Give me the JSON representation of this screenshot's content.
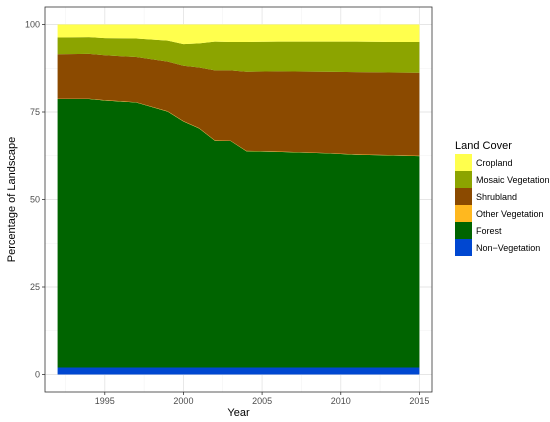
{
  "chart_data": {
    "type": "area",
    "stacked": true,
    "xlabel": "Year",
    "ylabel": "Percentage of Landscape",
    "xlim": [
      1991.2,
      2015.8
    ],
    "ylim": [
      -5,
      105
    ],
    "xticks": [
      1995,
      2000,
      2005,
      2010,
      2015
    ],
    "yticks": [
      0,
      25,
      50,
      75,
      100
    ],
    "grid": true,
    "legend_position": "right",
    "legend_title": "Land Cover",
    "x": [
      1992,
      1994,
      1995,
      1997,
      1999,
      2000,
      2001,
      2002,
      2003,
      2004,
      2006,
      2009,
      2011,
      2013,
      2015
    ],
    "series": [
      {
        "name": "Non-Vegetation",
        "color": "#0047d1",
        "values": [
          2.0,
          2.0,
          2.0,
          2.0,
          2.0,
          2.0,
          2.0,
          2.0,
          2.0,
          2.0,
          2.0,
          2.0,
          2.0,
          2.0,
          2.0
        ]
      },
      {
        "name": "Forest",
        "color": "#006400",
        "values": [
          76.7,
          76.7,
          76.3,
          75.7,
          73.1,
          70.3,
          68.3,
          64.8,
          64.7,
          61.8,
          61.6,
          61.2,
          60.8,
          60.6,
          60.4
        ]
      },
      {
        "name": "Other Vegetation",
        "color": "#ffb81f",
        "values": [
          0.1,
          0.1,
          0.1,
          0.1,
          0.1,
          0.1,
          0.1,
          0.1,
          0.1,
          0.1,
          0.1,
          0.1,
          0.1,
          0.1,
          0.1
        ]
      },
      {
        "name": "Shrubland",
        "color": "#8b4a00",
        "values": [
          12.7,
          12.8,
          12.8,
          12.9,
          14.2,
          15.8,
          17.3,
          20.0,
          20.1,
          22.6,
          22.9,
          23.2,
          23.5,
          23.6,
          23.7
        ]
      },
      {
        "name": "Mosaic Vegetation",
        "color": "#8ca400",
        "values": [
          4.8,
          4.8,
          4.9,
          5.3,
          6.0,
          6.2,
          6.9,
          8.2,
          8.1,
          8.5,
          8.5,
          8.6,
          8.7,
          8.7,
          8.8
        ]
      },
      {
        "name": "Cropland",
        "color": "#ffff4d",
        "values": [
          3.7,
          3.6,
          3.9,
          4.0,
          4.6,
          5.6,
          5.4,
          4.9,
          5.0,
          5.0,
          4.9,
          4.9,
          4.9,
          5.0,
          5.0
        ]
      }
    ],
    "legend_order": [
      "Cropland",
      "Mosaic Vegetation",
      "Shrubland",
      "Other Vegetation",
      "Forest",
      "Non−Vegetation"
    ]
  }
}
